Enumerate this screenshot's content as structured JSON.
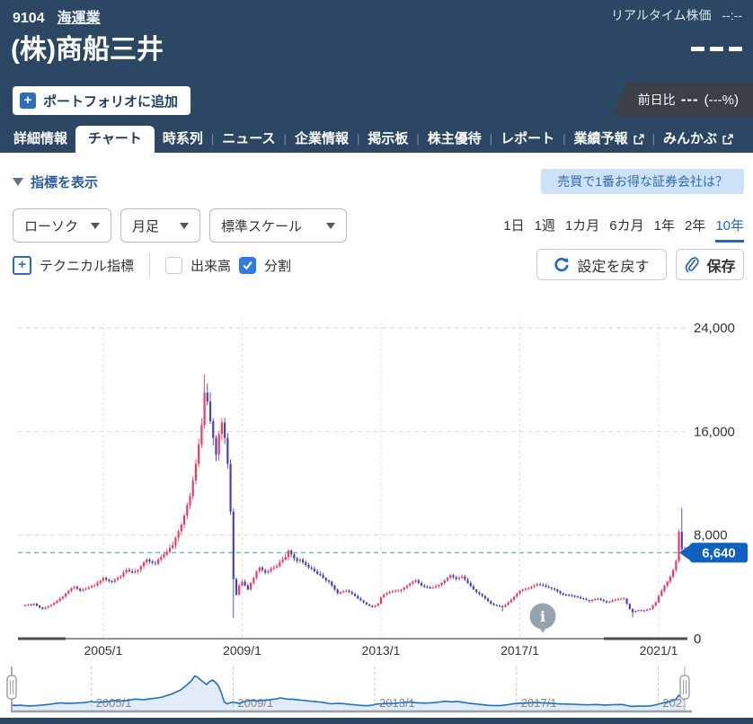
{
  "header": {
    "code": "9104",
    "industry": "海運業",
    "company": "(株)商船三井",
    "realtime_label": "リアルタイム株価",
    "realtime_time": "--:--",
    "price_placeholder": "---",
    "add_portfolio": "ポートフォリオに追加",
    "plus_glyph": "+",
    "change_label": "前日比",
    "change_value": "---",
    "change_pct": "(---%)"
  },
  "tabs": [
    {
      "label": "詳細情報",
      "active": false,
      "external": false
    },
    {
      "label": "チャート",
      "active": true,
      "external": false
    },
    {
      "label": "時系列",
      "active": false,
      "external": false
    },
    {
      "label": "ニュース",
      "active": false,
      "external": false
    },
    {
      "label": "企業情報",
      "active": false,
      "external": false
    },
    {
      "label": "掲示板",
      "active": false,
      "external": false
    },
    {
      "label": "株主優待",
      "active": false,
      "external": false
    },
    {
      "label": "レポート",
      "active": false,
      "external": false
    },
    {
      "label": "業績予報",
      "active": false,
      "external": true
    },
    {
      "label": "みんかぶ",
      "active": false,
      "external": true
    }
  ],
  "controls": {
    "indicator_toggle": "指標を表示",
    "promo": "売買で1番お得な証券会社は？",
    "selects": [
      "ローソク",
      "月足",
      "標準スケール"
    ],
    "ranges": [
      {
        "label": "1日",
        "active": false
      },
      {
        "label": "1週",
        "active": false
      },
      {
        "label": "1カ月",
        "active": false
      },
      {
        "label": "6カ月",
        "active": false
      },
      {
        "label": "1年",
        "active": false
      },
      {
        "label": "2年",
        "active": false
      },
      {
        "label": "10年",
        "active": true
      }
    ],
    "technical": "テクニカル指標",
    "technical_plus": "+",
    "volume": "出来高",
    "split": "分割",
    "reset": "設定を戻す",
    "save": "保存"
  },
  "chart_data": {
    "type": "candlestick",
    "interval": "monthly",
    "start_year": 2002.75,
    "y_ticks": [
      {
        "label": "24,000",
        "value": 24000
      },
      {
        "label": "16,000",
        "value": 16000
      },
      {
        "label": "8,000",
        "value": 8000
      },
      {
        "label": "0",
        "value": 0
      }
    ],
    "ylim": [
      0,
      24000
    ],
    "x_ticks": [
      {
        "label": "2005/1",
        "year": 2005.0
      },
      {
        "label": "2009/1",
        "year": 2009.0
      },
      {
        "label": "2013/1",
        "year": 2013.0
      },
      {
        "label": "2017/1",
        "year": 2017.0
      },
      {
        "label": "2021/1",
        "year": 2021.0
      }
    ],
    "current_price": 6640,
    "current_price_label": "6,640",
    "closes": [
      2600,
      2650,
      2600,
      2700,
      2550,
      2400,
      2300,
      2400,
      2500,
      2600,
      2750,
      2900,
      3100,
      3250,
      3500,
      3700,
      3900,
      4000,
      3850,
      3700,
      3800,
      3850,
      3950,
      4050,
      4100,
      4300,
      4500,
      4700,
      4550,
      4450,
      4400,
      4550,
      4700,
      4800,
      5100,
      5300,
      5200,
      5100,
      5200,
      5300,
      5600,
      5900,
      6100,
      5950,
      5850,
      5800,
      6100,
      6300,
      6500,
      6700,
      7000,
      7200,
      7800,
      8300,
      8800,
      9500,
      10300,
      11000,
      12200,
      13500,
      15000,
      16500,
      19000,
      18300,
      16800,
      15500,
      14200,
      15800,
      16700,
      15500,
      13500,
      9800,
      4600,
      3400,
      4100,
      4400,
      4100,
      3800,
      4300,
      4700,
      5200,
      5500,
      5300,
      5100,
      5200,
      5400,
      5500,
      5600,
      5900,
      6100,
      6300,
      6800,
      6500,
      6200,
      6000,
      6100,
      5900,
      5700,
      5500,
      5400,
      5200,
      5000,
      4900,
      4700,
      4500,
      4400,
      4100,
      3800,
      3500,
      3600,
      3650,
      3700,
      3600,
      3450,
      3300,
      3100,
      2950,
      2800,
      2650,
      2550,
      2450,
      2550,
      2700,
      3200,
      3400,
      3500,
      3600,
      3650,
      3680,
      3700,
      3800,
      3950,
      4100,
      4250,
      4400,
      4500,
      4300,
      4100,
      4000,
      3950,
      3900,
      3950,
      4050,
      4150,
      4300,
      4500,
      4700,
      4900,
      4750,
      4600,
      4700,
      4800,
      4550,
      4300,
      4050,
      3800,
      3600,
      3450,
      3300,
      3100,
      2900,
      2700,
      2600,
      2550,
      2500,
      2450,
      2600,
      2800,
      3000,
      3250,
      3500,
      3700,
      3800,
      3850,
      3900,
      4000,
      4100,
      4200,
      4150,
      4100,
      4000,
      3950,
      3880,
      3800,
      3650,
      3500,
      3400,
      3380,
      3350,
      3300,
      3250,
      3200,
      3100,
      3050,
      2980,
      2900,
      3000,
      3050,
      3100,
      3000,
      2900,
      2800,
      2850,
      2950,
      3000,
      3050,
      3080,
      3100,
      2700,
      2300,
      2050,
      2150,
      2200,
      2180,
      2150,
      2250,
      2300,
      2550,
      2800,
      3300,
      3700,
      4100,
      4400,
      4800,
      5300,
      6000,
      8250,
      6900,
      6640
    ],
    "wick_overrides": {
      "62": {
        "high": 20400
      },
      "72": {
        "low": 1600
      },
      "165": {
        "low": 2100
      },
      "210": {
        "low": 1650
      },
      "227": {
        "high": 10100
      }
    },
    "colors": {
      "up": "#ee3a5f",
      "down": "#4743b2",
      "grid": "#d9d9d9",
      "year_grid": "#e2e2e2",
      "price_line": "#78aede",
      "badge": "#1060c0",
      "axis": "#8f8f8f",
      "axis_dark": "#4d4d4d",
      "info": "#95a3ae",
      "nav_line": "#1e6fc0",
      "nav_fill": "#e1ecf8"
    },
    "navigator_labels": [
      "2005/1",
      "2009/1",
      "2013/1",
      "2017/1",
      "2021/1"
    ]
  }
}
